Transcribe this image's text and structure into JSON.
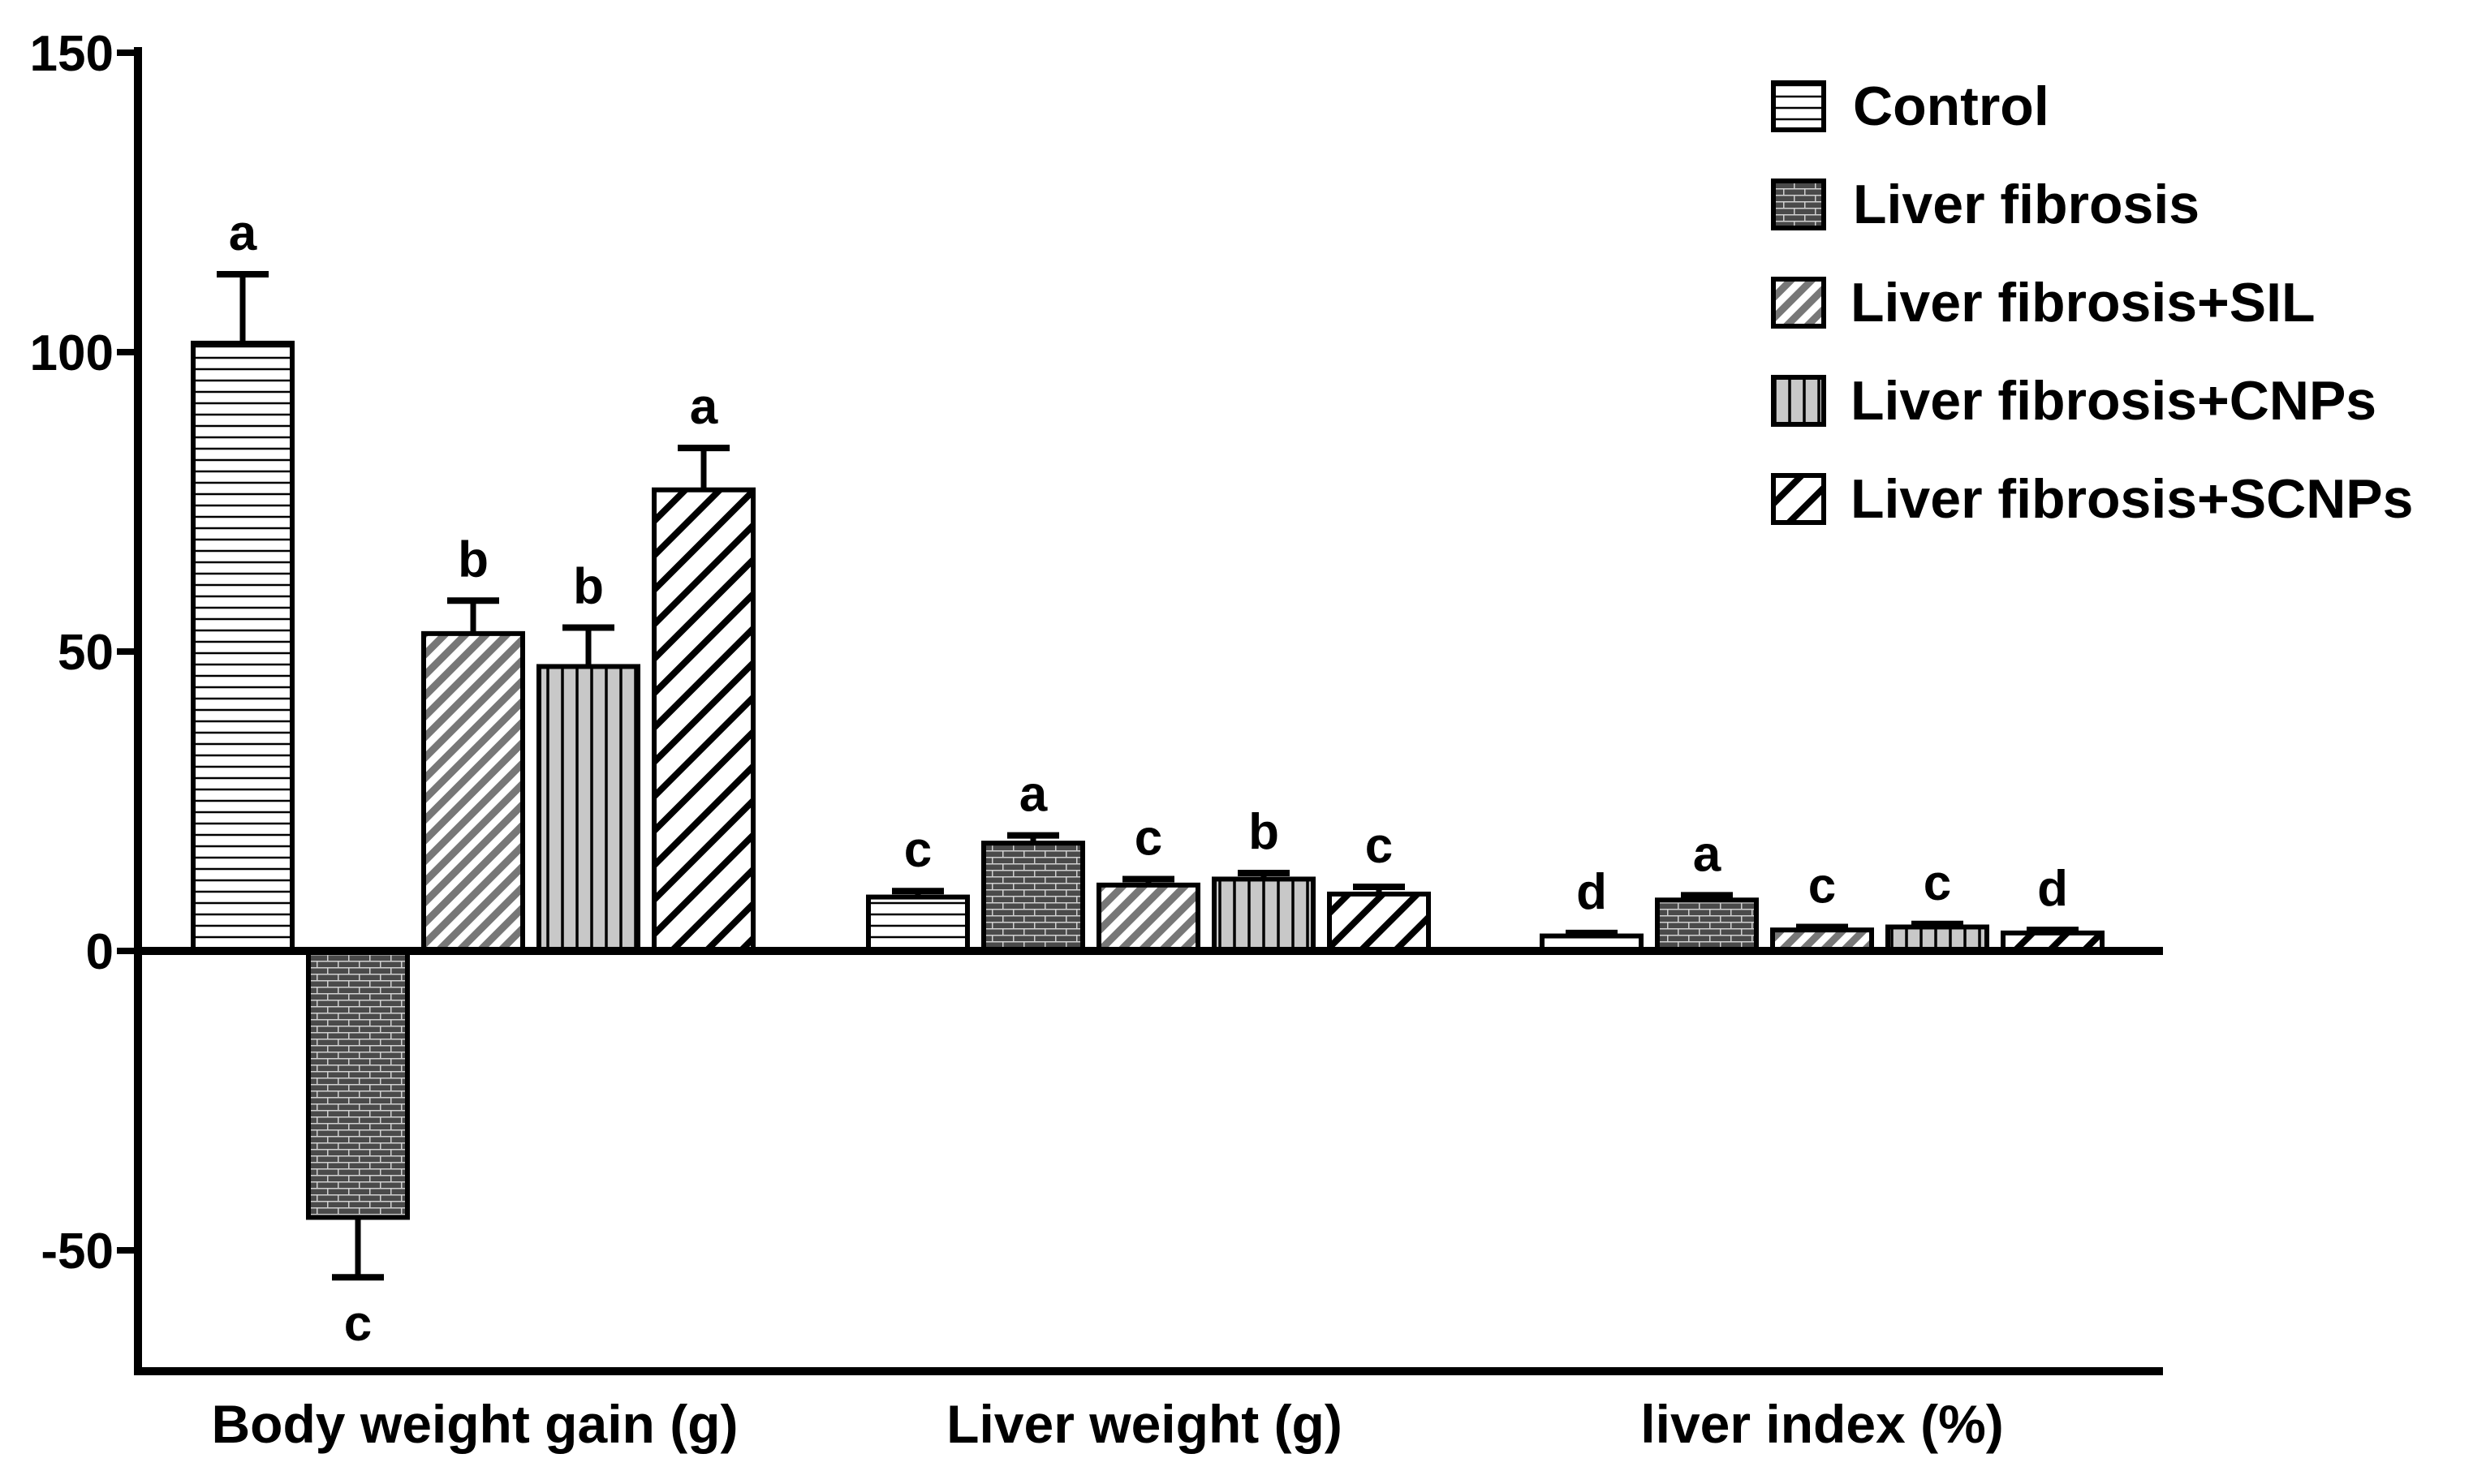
{
  "chart_data": {
    "type": "bar",
    "title": "",
    "xlabel": "",
    "ylabel": "",
    "ylim": [
      -70,
      150
    ],
    "yticks": [
      -50,
      0,
      50,
      100,
      150
    ],
    "tick_labels": [
      "-50",
      "0",
      "50",
      "100",
      "150"
    ],
    "categories": [
      "Body weight gain (g)",
      "Liver weight (g)",
      "liver index (%)"
    ],
    "series": [
      {
        "name": "Control",
        "pattern": "hlines",
        "values": [
          101.5,
          9,
          2.5
        ],
        "errors": [
          11.5,
          1.0,
          0.5
        ],
        "labels": [
          "a",
          "c",
          "d"
        ]
      },
      {
        "name": "Liver fibrosis",
        "pattern": "brick",
        "values": [
          -44.5,
          18,
          8.5
        ],
        "errors": [
          10,
          1.3,
          0.8
        ],
        "labels": [
          "c",
          "a",
          "a"
        ]
      },
      {
        "name": "Liver fibrosis+SIL",
        "pattern": "dense-diag",
        "values": [
          53,
          11,
          3.5
        ],
        "errors": [
          5.5,
          1.0,
          0.5
        ],
        "labels": [
          "b",
          "c",
          "c"
        ]
      },
      {
        "name": "Liver fibrosis+CNPs",
        "pattern": "vlines",
        "values": [
          47.5,
          12,
          4
        ],
        "errors": [
          6.5,
          1.0,
          0.5
        ],
        "labels": [
          "b",
          "b",
          "c"
        ]
      },
      {
        "name": "Liver fibrosis+SCNPs",
        "pattern": "sparse-diag",
        "values": [
          77,
          9.5,
          3
        ],
        "errors": [
          7,
          1.2,
          0.5
        ],
        "labels": [
          "a",
          "c",
          "d"
        ]
      }
    ],
    "legend_position": "top-right",
    "grid": false
  }
}
